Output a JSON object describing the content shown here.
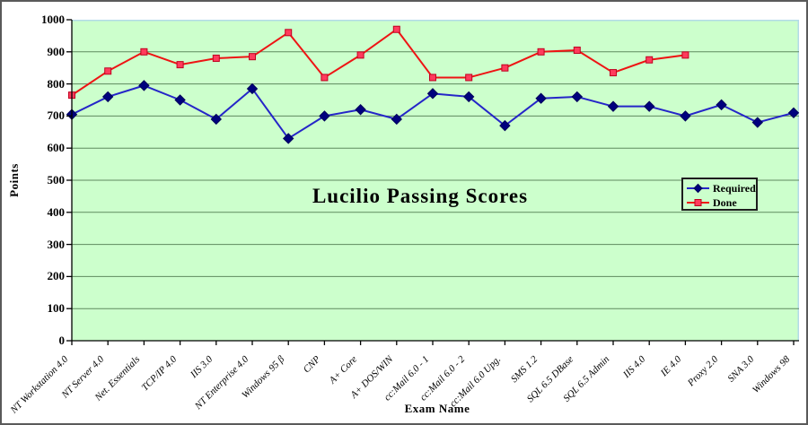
{
  "chart": {
    "title": "Lucilio Passing Scores",
    "x_axis_title": "Exam Name",
    "y_axis_title": "Points"
  },
  "chart_data": {
    "type": "line",
    "title": "Lucilio Passing Scores",
    "xlabel": "Exam Name",
    "ylabel": "Points",
    "ylim": [
      0,
      1000
    ],
    "ytick_interval": 100,
    "grid": "horizontal",
    "legend_position": "middle-right",
    "plot_bg": "#ccffcc",
    "plot_border_color": "#b2dbe8",
    "grid_color": "#5f8a5f",
    "axis_color": "#000000",
    "categories": [
      "NT Workstation 4.0",
      "NT Server 4.0",
      "Net. Essentials",
      "TCP/IP 4.0",
      "IIS 3.0",
      "NT Enterprise 4.0",
      "Windows 95 β",
      "CNP",
      "A+ Core",
      "A+ DOS/WIN",
      "cc:Mail 6.0 - 1",
      "cc:Mail 6.0 - 2",
      "cc:Mail 6.0 Upg.",
      "SMS 1.2",
      "SQL 6.5 DBase",
      "SQL 6.5 Admin",
      "IIS 4.0",
      "IE 4.0",
      "Proxy 2.0",
      "SNA 3.0",
      "Windows 98"
    ],
    "series": [
      {
        "name": "Required",
        "marker": "diamond",
        "line_color": "#2525c8",
        "marker_fill": "#00007e",
        "marker_stroke": "#00005a",
        "values": [
          705,
          760,
          795,
          750,
          690,
          785,
          630,
          700,
          720,
          690,
          770,
          760,
          670,
          755,
          760,
          730,
          730,
          700,
          735,
          680,
          710
        ]
      },
      {
        "name": "Done",
        "marker": "square",
        "line_color": "#ee1414",
        "marker_fill": "#ff3b5c",
        "marker_stroke": "#c00020",
        "values": [
          765,
          840,
          900,
          860,
          880,
          885,
          960,
          820,
          890,
          970,
          820,
          820,
          850,
          900,
          905,
          835,
          875,
          890,
          null,
          null,
          null
        ]
      }
    ]
  }
}
